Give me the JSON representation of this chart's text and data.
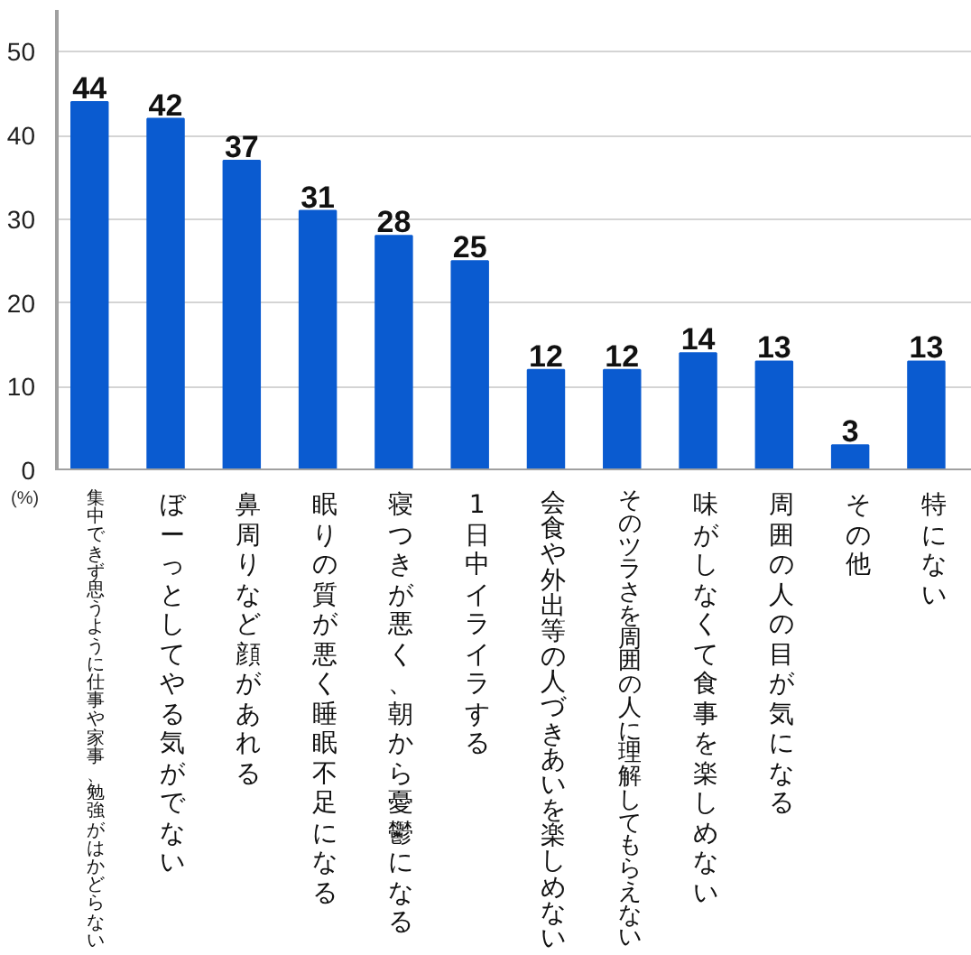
{
  "chart_data": {
    "type": "bar",
    "categories": [
      "集中できず思うように仕事や家事、勉強がはかどらない",
      "ぼーっとしてやる気がでない",
      "鼻周りなど顔があれる",
      "眠りの質が悪く睡眠不足になる",
      "寝つきが悪く、朝から憂鬱になる",
      "1日中イライラする",
      "会食や外出等の人づきあいを楽しめない",
      "そのツラさを周囲の人に理解してもらえない",
      "味がしなくて食事を楽しめない",
      "周囲の人の目が気になる",
      "その他",
      "特にない"
    ],
    "values": [
      44,
      42,
      37,
      31,
      28,
      25,
      12,
      12,
      14,
      13,
      3,
      13
    ],
    "color": "#0a5bd0",
    "ylim": [
      0,
      55
    ],
    "yticks": [
      0,
      10,
      20,
      30,
      40,
      50
    ],
    "grid": "y",
    "data_labels": true,
    "annotations": [
      "(%)"
    ]
  }
}
